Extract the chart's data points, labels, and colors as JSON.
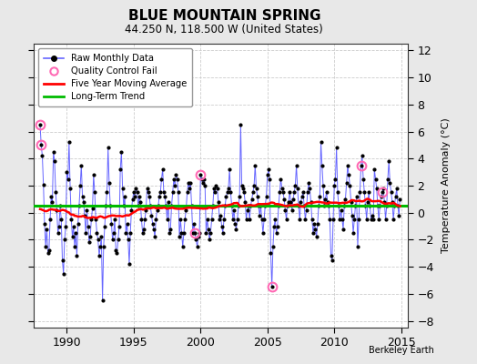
{
  "title": "BLUE MOUNTAIN SPRING",
  "subtitle": "44.250 N, 118.500 W (United States)",
  "ylabel": "Temperature Anomaly (°C)",
  "attribution": "Berkeley Earth",
  "xlim": [
    1987.5,
    2015.5
  ],
  "ylim": [
    -8.5,
    12.5
  ],
  "yticks": [
    -8,
    -6,
    -4,
    -2,
    0,
    2,
    4,
    6,
    8,
    10,
    12
  ],
  "xticks": [
    1990,
    1995,
    2000,
    2005,
    2010,
    2015
  ],
  "fig_bg_color": "#e8e8e8",
  "plot_bg_color": "#ffffff",
  "raw_line_color": "#6666ff",
  "raw_dot_color": "#000000",
  "qc_fail_color": "#ff69b4",
  "moving_avg_color": "#ff0000",
  "trend_color": "#00bb00",
  "legend_items": [
    "Raw Monthly Data",
    "Quality Control Fail",
    "Five Year Moving Average",
    "Long-Term Trend"
  ],
  "raw_data": [
    1988.0,
    6.5,
    1988.083,
    5.0,
    1988.167,
    4.2,
    1988.25,
    2.1,
    1988.333,
    -0.8,
    1988.417,
    -2.5,
    1988.5,
    -1.2,
    1988.583,
    -3.0,
    1988.667,
    -2.8,
    1988.75,
    -0.5,
    1988.833,
    1.2,
    1988.917,
    0.8,
    1989.0,
    4.5,
    1989.083,
    3.8,
    1989.167,
    1.5,
    1989.25,
    0.2,
    1989.333,
    -1.5,
    1989.417,
    -1.0,
    1989.5,
    0.5,
    1989.583,
    -0.5,
    1989.667,
    -3.5,
    1989.75,
    -4.5,
    1989.833,
    -2.0,
    1989.917,
    -1.0,
    1990.0,
    3.0,
    1990.083,
    2.5,
    1990.167,
    5.2,
    1990.25,
    1.8,
    1990.333,
    -0.5,
    1990.417,
    -1.8,
    1990.5,
    -1.0,
    1990.583,
    -2.5,
    1990.667,
    -1.5,
    1990.75,
    -3.2,
    1990.833,
    -0.8,
    1990.917,
    0.5,
    1991.0,
    2.0,
    1991.083,
    3.5,
    1991.167,
    1.2,
    1991.25,
    0.8,
    1991.333,
    -0.2,
    1991.417,
    -1.5,
    1991.5,
    0.2,
    1991.583,
    -1.0,
    1991.667,
    -2.2,
    1991.75,
    -1.8,
    1991.833,
    -0.5,
    1991.917,
    0.3,
    1992.0,
    2.8,
    1992.083,
    1.5,
    1992.167,
    -0.5,
    1992.25,
    -1.5,
    1992.333,
    -2.0,
    1992.417,
    -3.2,
    1992.5,
    -2.5,
    1992.583,
    -1.8,
    1992.667,
    -6.5,
    1992.75,
    -2.5,
    1992.833,
    -1.0,
    1992.917,
    0.5,
    1993.0,
    1.5,
    1993.083,
    4.8,
    1993.167,
    2.2,
    1993.25,
    0.5,
    1993.333,
    -0.8,
    1993.417,
    -2.0,
    1993.5,
    -1.5,
    1993.583,
    -0.5,
    1993.667,
    -2.8,
    1993.75,
    -3.0,
    1993.833,
    -2.0,
    1993.917,
    -1.0,
    1994.0,
    3.2,
    1994.083,
    4.5,
    1994.167,
    1.8,
    1994.25,
    0.5,
    1994.333,
    1.2,
    1994.417,
    -1.5,
    1994.5,
    -0.8,
    1994.583,
    -2.0,
    1994.667,
    -3.8,
    1994.75,
    -1.5,
    1994.833,
    0.2,
    1994.917,
    1.0,
    1995.0,
    1.5,
    1995.083,
    1.2,
    1995.167,
    1.8,
    1995.25,
    1.5,
    1995.333,
    0.5,
    1995.417,
    1.2,
    1995.5,
    0.8,
    1995.583,
    -0.5,
    1995.667,
    -1.5,
    1995.75,
    -1.2,
    1995.833,
    -0.5,
    1995.917,
    0.2,
    1996.0,
    1.8,
    1996.083,
    1.5,
    1996.167,
    1.2,
    1996.25,
    0.5,
    1996.333,
    -0.2,
    1996.417,
    -0.8,
    1996.5,
    -1.2,
    1996.583,
    -1.8,
    1996.667,
    -0.5,
    1996.75,
    0.2,
    1996.833,
    0.5,
    1996.917,
    1.2,
    1997.0,
    1.5,
    1997.083,
    2.5,
    1997.167,
    3.2,
    1997.25,
    1.5,
    1997.333,
    1.2,
    1997.417,
    0.5,
    1997.5,
    -0.5,
    1997.583,
    0.8,
    1997.667,
    -1.5,
    1997.75,
    -1.2,
    1997.833,
    0.5,
    1997.917,
    1.5,
    1998.0,
    2.5,
    1998.083,
    2.0,
    1998.167,
    2.8,
    1998.25,
    2.5,
    1998.333,
    1.5,
    1998.417,
    -1.8,
    1998.5,
    -0.5,
    1998.583,
    -1.5,
    1998.667,
    -2.5,
    1998.75,
    -1.5,
    1998.833,
    -0.5,
    1998.917,
    0.2,
    1999.0,
    1.5,
    1999.083,
    2.2,
    1999.167,
    1.8,
    1999.25,
    2.2,
    1999.333,
    0.5,
    1999.417,
    -1.5,
    1999.5,
    -0.8,
    1999.583,
    -1.5,
    1999.667,
    -2.0,
    1999.75,
    -2.5,
    1999.833,
    -1.8,
    1999.917,
    -1.5,
    2000.0,
    2.8,
    2000.083,
    2.5,
    2000.167,
    2.2,
    2000.25,
    2.5,
    2000.333,
    2.0,
    2000.417,
    -1.5,
    2000.5,
    -0.5,
    2000.583,
    -1.2,
    2000.667,
    -2.0,
    2000.75,
    -1.5,
    2000.833,
    -0.5,
    2000.917,
    0.5,
    2001.0,
    1.8,
    2001.083,
    1.5,
    2001.167,
    2.0,
    2001.25,
    1.8,
    2001.333,
    0.8,
    2001.417,
    -0.5,
    2001.5,
    -0.2,
    2001.583,
    -1.0,
    2001.667,
    -1.5,
    2001.75,
    -0.5,
    2001.833,
    0.5,
    2001.917,
    1.2,
    2002.0,
    1.5,
    2002.083,
    1.8,
    2002.167,
    3.2,
    2002.25,
    1.5,
    2002.333,
    0.5,
    2002.417,
    -0.5,
    2002.5,
    0.2,
    2002.583,
    -0.8,
    2002.667,
    -1.2,
    2002.75,
    -0.5,
    2002.833,
    0.5,
    2002.917,
    1.2,
    2003.0,
    6.5,
    2003.083,
    2.0,
    2003.167,
    1.8,
    2003.25,
    1.5,
    2003.333,
    0.8,
    2003.417,
    -0.5,
    2003.5,
    0.2,
    2003.583,
    0.5,
    2003.667,
    -0.5,
    2003.75,
    0.5,
    2003.833,
    1.0,
    2003.917,
    1.5,
    2004.0,
    2.0,
    2004.083,
    3.5,
    2004.167,
    1.8,
    2004.25,
    1.2,
    2004.333,
    0.5,
    2004.417,
    -0.2,
    2004.5,
    0.5,
    2004.583,
    -0.5,
    2004.667,
    -1.5,
    2004.75,
    -0.5,
    2004.833,
    0.5,
    2004.917,
    1.2,
    2005.0,
    2.8,
    2005.083,
    3.2,
    2005.167,
    2.5,
    2005.25,
    -3.0,
    2005.333,
    -5.5,
    2005.417,
    -2.5,
    2005.5,
    -1.0,
    2005.583,
    -0.5,
    2005.667,
    -1.5,
    2005.75,
    -1.0,
    2005.833,
    0.5,
    2005.917,
    1.5,
    2006.0,
    2.5,
    2006.083,
    1.8,
    2006.167,
    1.5,
    2006.25,
    1.0,
    2006.333,
    0.2,
    2006.417,
    -0.5,
    2006.5,
    0.5,
    2006.583,
    0.8,
    2006.667,
    1.5,
    2006.75,
    0.8,
    2006.833,
    0.2,
    2006.917,
    1.0,
    2007.0,
    1.5,
    2007.083,
    2.0,
    2007.167,
    3.5,
    2007.25,
    1.8,
    2007.333,
    0.5,
    2007.417,
    -0.5,
    2007.5,
    0.8,
    2007.583,
    1.2,
    2007.667,
    1.5,
    2007.75,
    0.5,
    2007.833,
    -0.5,
    2007.917,
    0.2,
    2008.0,
    1.5,
    2008.083,
    2.2,
    2008.167,
    1.8,
    2008.25,
    0.8,
    2008.333,
    -0.5,
    2008.417,
    -1.5,
    2008.5,
    -0.8,
    2008.583,
    -1.2,
    2008.667,
    -1.8,
    2008.75,
    -0.8,
    2008.833,
    0.5,
    2008.917,
    1.2,
    2009.0,
    5.2,
    2009.083,
    3.5,
    2009.167,
    2.0,
    2009.25,
    0.5,
    2009.333,
    1.0,
    2009.417,
    1.5,
    2009.5,
    0.8,
    2009.583,
    0.5,
    2009.667,
    -0.5,
    2009.75,
    -3.2,
    2009.833,
    -3.5,
    2009.917,
    -0.5,
    2010.0,
    2.0,
    2010.083,
    2.5,
    2010.167,
    4.8,
    2010.25,
    1.5,
    2010.333,
    0.5,
    2010.417,
    -0.5,
    2010.5,
    0.2,
    2010.583,
    -0.5,
    2010.667,
    -1.2,
    2010.75,
    0.5,
    2010.833,
    1.0,
    2010.917,
    2.2,
    2011.0,
    3.5,
    2011.083,
    2.8,
    2011.167,
    2.0,
    2011.25,
    0.8,
    2011.333,
    -0.2,
    2011.417,
    -1.5,
    2011.5,
    -0.5,
    2011.583,
    0.5,
    2011.667,
    1.2,
    2011.75,
    -2.5,
    2011.833,
    -0.5,
    2011.917,
    1.5,
    2012.0,
    3.5,
    2012.083,
    4.2,
    2012.167,
    2.5,
    2012.25,
    1.5,
    2012.333,
    0.5,
    2012.417,
    -0.5,
    2012.5,
    0.8,
    2012.583,
    1.5,
    2012.667,
    0.5,
    2012.75,
    -0.5,
    2012.833,
    -0.2,
    2012.917,
    -0.5,
    2013.0,
    3.2,
    2013.083,
    2.5,
    2013.167,
    1.8,
    2013.25,
    0.5,
    2013.333,
    -0.5,
    2013.417,
    0.5,
    2013.5,
    1.2,
    2013.583,
    1.5,
    2013.667,
    1.8,
    2013.75,
    0.8,
    2013.833,
    -0.5,
    2013.917,
    0.5,
    2014.0,
    2.5,
    2014.083,
    3.8,
    2014.167,
    2.2,
    2014.25,
    1.5,
    2014.333,
    0.8,
    2014.417,
    -0.5,
    2014.5,
    0.5,
    2014.583,
    1.2,
    2014.667,
    1.8,
    2014.75,
    0.5,
    2014.833,
    -0.2,
    2014.917,
    1.0
  ],
  "qc_fail_times": [
    1988.0,
    1988.083,
    1999.583,
    2000.0,
    2005.333,
    2012.0,
    2013.583
  ],
  "qc_fail_values": [
    6.5,
    5.0,
    -1.5,
    2.8,
    -5.5,
    3.5,
    1.5
  ],
  "trend_y": 0.5
}
